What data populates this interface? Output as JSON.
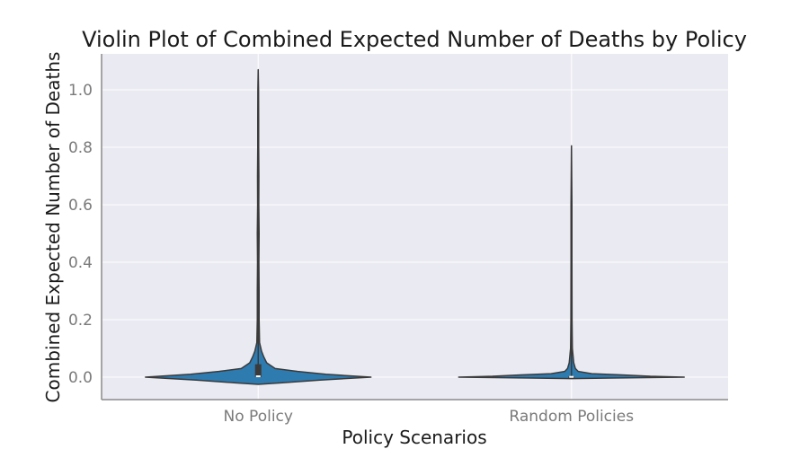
{
  "chart_data": {
    "type": "violin",
    "title": "Violin Plot of Combined Expected Number of Deaths by Policy",
    "xlabel": "Policy Scenarios",
    "ylabel": "Combined Expected Number of Deaths",
    "categories": [
      "No Policy",
      "Random Policies"
    ],
    "ylim": [
      -0.08,
      1.13
    ],
    "yticks": [
      0.0,
      0.2,
      0.4,
      0.6,
      0.8,
      1.0
    ],
    "ytick_labels": [
      "0.0",
      "0.2",
      "0.4",
      "0.6",
      "0.8",
      "1.0"
    ],
    "grid": true,
    "style": "seaborn-darkgrid",
    "colors": {
      "plot_bg": "#eaeaf2",
      "violin_fill": "#2e7bb0",
      "violin_edge": "#3a3a3a",
      "grid": "#ffffff"
    },
    "violins": [
      {
        "category": "No Policy",
        "max": 1.07,
        "min": -0.025,
        "q1": 0.0,
        "median": 0.003,
        "q3": 0.045,
        "whisker_low": 0.0,
        "whisker_high": 1.07,
        "density_profile": [
          [
            -0.025,
            0.0
          ],
          [
            -0.02,
            0.2
          ],
          [
            -0.01,
            0.55
          ],
          [
            0.0,
            1.0
          ],
          [
            0.01,
            0.6
          ],
          [
            0.02,
            0.35
          ],
          [
            0.03,
            0.15
          ],
          [
            0.05,
            0.075
          ],
          [
            0.07,
            0.05
          ],
          [
            0.09,
            0.03
          ],
          [
            0.12,
            0.012
          ],
          [
            0.2,
            0.008
          ],
          [
            0.3,
            0.008
          ],
          [
            0.4,
            0.006
          ],
          [
            0.5,
            0.008
          ],
          [
            0.6,
            0.005
          ],
          [
            0.7,
            0.006
          ],
          [
            0.8,
            0.004
          ],
          [
            0.9,
            0.004
          ],
          [
            1.0,
            0.003
          ],
          [
            1.07,
            0.0
          ]
        ]
      },
      {
        "category": "Random Policies",
        "max": 0.805,
        "min": -0.005,
        "q1": 0.0,
        "median": 0.001,
        "q3": 0.002,
        "whisker_low": 0.0,
        "whisker_high": 0.805,
        "density_profile": [
          [
            -0.005,
            0.0
          ],
          [
            -0.003,
            0.35
          ],
          [
            0.0,
            1.0
          ],
          [
            0.003,
            0.7
          ],
          [
            0.008,
            0.45
          ],
          [
            0.012,
            0.18
          ],
          [
            0.02,
            0.06
          ],
          [
            0.03,
            0.035
          ],
          [
            0.05,
            0.02
          ],
          [
            0.1,
            0.008
          ],
          [
            0.2,
            0.005
          ],
          [
            0.4,
            0.004
          ],
          [
            0.6,
            0.004
          ],
          [
            0.805,
            0.0
          ]
        ]
      }
    ]
  }
}
